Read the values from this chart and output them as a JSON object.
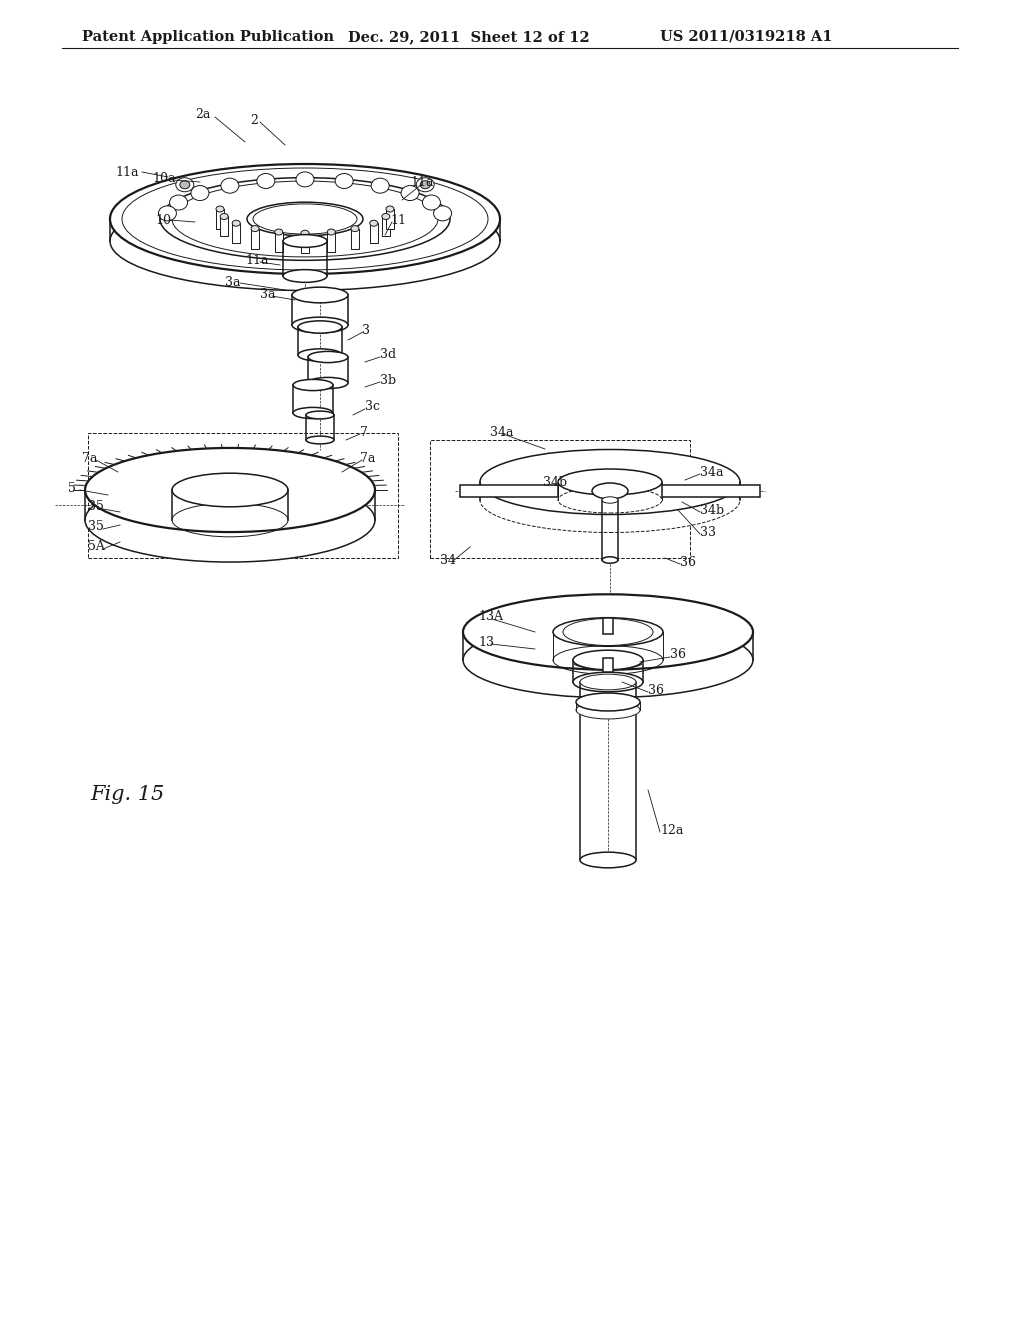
{
  "header_left": "Patent Application Publication",
  "header_mid": "Dec. 29, 2011  Sheet 12 of 12",
  "header_right": "US 2011/0319218 A1",
  "fig_label": "Fig. 15",
  "bg_color": "#ffffff",
  "line_color": "#1a1a1a",
  "font_size_header": 10.5,
  "font_size_label": 9,
  "font_size_fig": 15
}
